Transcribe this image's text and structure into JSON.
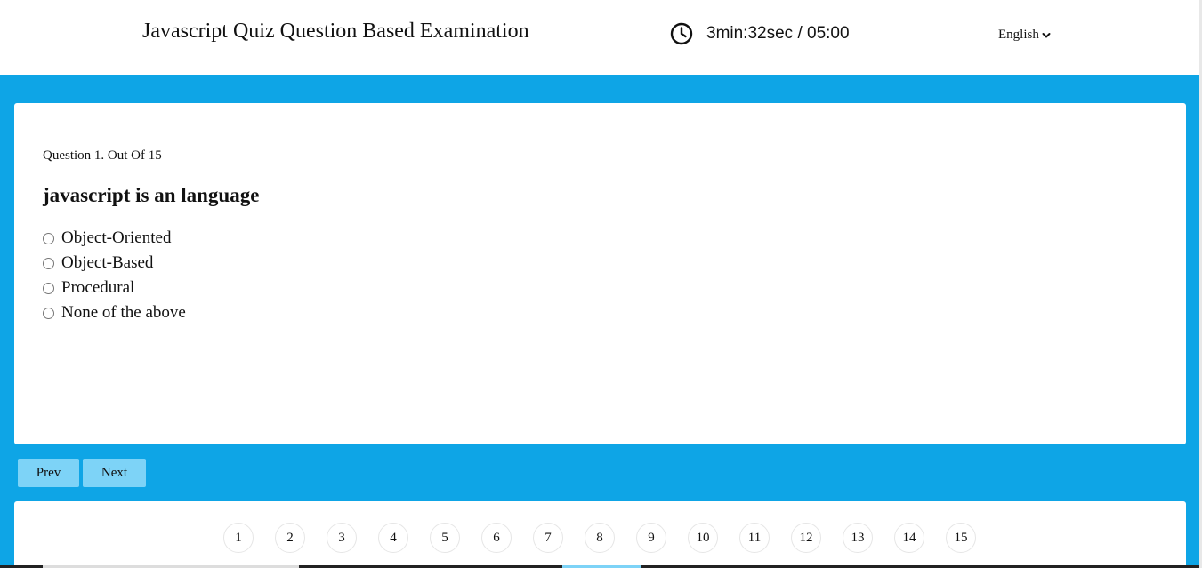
{
  "header": {
    "title": "Javascript Quiz Question Based Examination",
    "timer": {
      "icon": "clock-icon",
      "text": "3min:32sec / 05:00"
    },
    "language": {
      "selected": "English",
      "icon": "chevron-down-icon"
    }
  },
  "question": {
    "count_label": "Question 1. Out Of 15",
    "text": "javascript is an language",
    "options": [
      "Object-Oriented",
      "Object-Based",
      "Procedural",
      "None of the above"
    ]
  },
  "navigation": {
    "prev_label": "Prev",
    "next_label": "Next"
  },
  "pagination": {
    "pages": [
      "1",
      "2",
      "3",
      "4",
      "5",
      "6",
      "7",
      "8",
      "9",
      "10",
      "11",
      "12",
      "13",
      "14",
      "15"
    ]
  },
  "colors": {
    "background": "#0ea5e6",
    "button": "#7dd3f7",
    "card": "#ffffff"
  }
}
